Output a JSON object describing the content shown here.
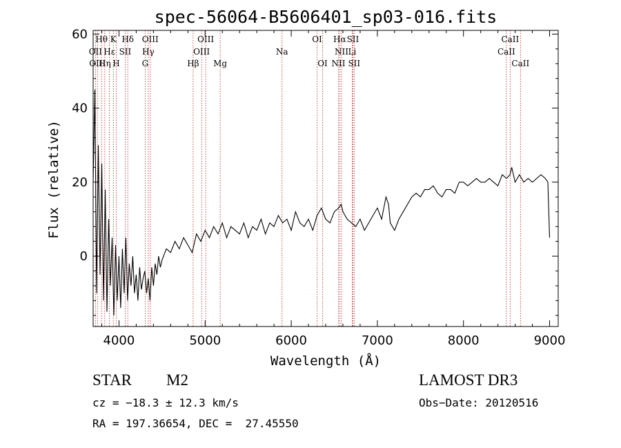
{
  "chart_data": {
    "type": "line",
    "title": "spec-56064-B5606401_sp03-016.fits",
    "xlabel": "Wavelength (Å)",
    "ylabel": "Flux (relative)",
    "xlim": [
      3700,
      9100
    ],
    "ylim": [
      -19,
      61
    ],
    "xticks": [
      4000,
      5000,
      6000,
      7000,
      8000,
      9000
    ],
    "yticks": [
      0,
      20,
      40,
      60
    ],
    "line_color": "#000000",
    "marker_color": "#b22222",
    "series": [
      {
        "name": "flux",
        "x": [
          3700,
          3720,
          3740,
          3760,
          3780,
          3800,
          3820,
          3840,
          3860,
          3880,
          3900,
          3920,
          3940,
          3960,
          3980,
          4000,
          4020,
          4040,
          4060,
          4080,
          4100,
          4120,
          4140,
          4160,
          4180,
          4200,
          4220,
          4240,
          4260,
          4280,
          4300,
          4320,
          4340,
          4360,
          4380,
          4400,
          4420,
          4440,
          4460,
          4480,
          4500,
          4550,
          4600,
          4650,
          4700,
          4750,
          4800,
          4850,
          4900,
          4950,
          5000,
          5050,
          5100,
          5150,
          5200,
          5250,
          5300,
          5350,
          5400,
          5450,
          5500,
          5550,
          5600,
          5650,
          5700,
          5750,
          5800,
          5850,
          5900,
          5950,
          6000,
          6050,
          6100,
          6150,
          6200,
          6250,
          6300,
          6350,
          6400,
          6450,
          6500,
          6550,
          6580,
          6600,
          6650,
          6700,
          6750,
          6800,
          6850,
          6900,
          6950,
          7000,
          7050,
          7100,
          7130,
          7150,
          7200,
          7250,
          7300,
          7350,
          7400,
          7450,
          7500,
          7550,
          7600,
          7650,
          7700,
          7750,
          7800,
          7850,
          7900,
          7950,
          8000,
          8050,
          8100,
          8150,
          8200,
          8250,
          8300,
          8350,
          8400,
          8450,
          8500,
          8540,
          8560,
          8600,
          8650,
          8700,
          8750,
          8800,
          8850,
          8900,
          8950,
          8980,
          9000
        ],
        "y": [
          20,
          45,
          -10,
          30,
          -5,
          25,
          -12,
          18,
          -15,
          10,
          -8,
          5,
          -16,
          3,
          -12,
          0,
          -14,
          2,
          -10,
          5,
          -12,
          -2,
          -8,
          0,
          -10,
          -5,
          -12,
          -3,
          -9,
          -6,
          -4,
          -10,
          -6,
          -12,
          -3,
          -8,
          -2,
          -5,
          0,
          -3,
          -1,
          2,
          1,
          4,
          2,
          5,
          3,
          1,
          6,
          4,
          7,
          5,
          8,
          6,
          9,
          5,
          8,
          7,
          6,
          9,
          5,
          8,
          7,
          10,
          6,
          9,
          8,
          11,
          9,
          10,
          7,
          12,
          9,
          8,
          10,
          7,
          11,
          13,
          10,
          9,
          12,
          13,
          14,
          12,
          10,
          9,
          8,
          10,
          7,
          9,
          11,
          13,
          10,
          16,
          14,
          9,
          7,
          10,
          12,
          14,
          16,
          17,
          16,
          18,
          18,
          19,
          17,
          16,
          18,
          18,
          17,
          20,
          20,
          19,
          20,
          21,
          20,
          20,
          21,
          20,
          19,
          22,
          21,
          22,
          24,
          20,
          22,
          20,
          21,
          20,
          21,
          22,
          21,
          20,
          5
        ]
      }
    ],
    "lines": {
      "row1": [
        {
          "name": "Hθ",
          "wl": 3797
        },
        {
          "name": "K",
          "wl": 3934
        },
        {
          "name": "Hδ",
          "wl": 4102
        },
        {
          "name": "OIII",
          "wl": 4363
        },
        {
          "name": "OIII",
          "wl": 5007
        },
        {
          "name": "OI",
          "wl": 6300
        },
        {
          "name": "Hα",
          "wl": 6563
        },
        {
          "name": "SII",
          "wl": 6716
        },
        {
          "name": "CaII",
          "wl": 8542
        }
      ],
      "row2": [
        {
          "name": "OII",
          "wl": 3727
        },
        {
          "name": "Hε",
          "wl": 3889
        },
        {
          "name": "SII",
          "wl": 4072
        },
        {
          "name": "Hγ",
          "wl": 4340
        },
        {
          "name": "OIII",
          "wl": 4959
        },
        {
          "name": "Na",
          "wl": 5893
        },
        {
          "name": "NII",
          "wl": 6584
        },
        {
          "name": "Li",
          "wl": 6708
        },
        {
          "name": "CaII",
          "wl": 8498
        }
      ],
      "row3": [
        {
          "name": "OIII",
          "wl": 3750
        },
        {
          "name": "Hη",
          "wl": 3835
        },
        {
          "name": "H",
          "wl": 3968
        },
        {
          "name": "G",
          "wl": 4304
        },
        {
          "name": "Hβ",
          "wl": 4861
        },
        {
          "name": "Mg",
          "wl": 5175
        },
        {
          "name": "OI",
          "wl": 6364
        },
        {
          "name": "NII",
          "wl": 6548
        },
        {
          "name": "SII",
          "wl": 6731
        },
        {
          "name": "CaII",
          "wl": 8662
        }
      ]
    }
  },
  "info": {
    "object_class": "STAR",
    "subclass": "M2",
    "survey": "LAMOST DR3",
    "cz": "cz = −18.3 ± 12.3 km/s",
    "obs_date": "Obs−Date: 20120516",
    "coords": "RA = 197.36654, DEC =  27.45550"
  }
}
